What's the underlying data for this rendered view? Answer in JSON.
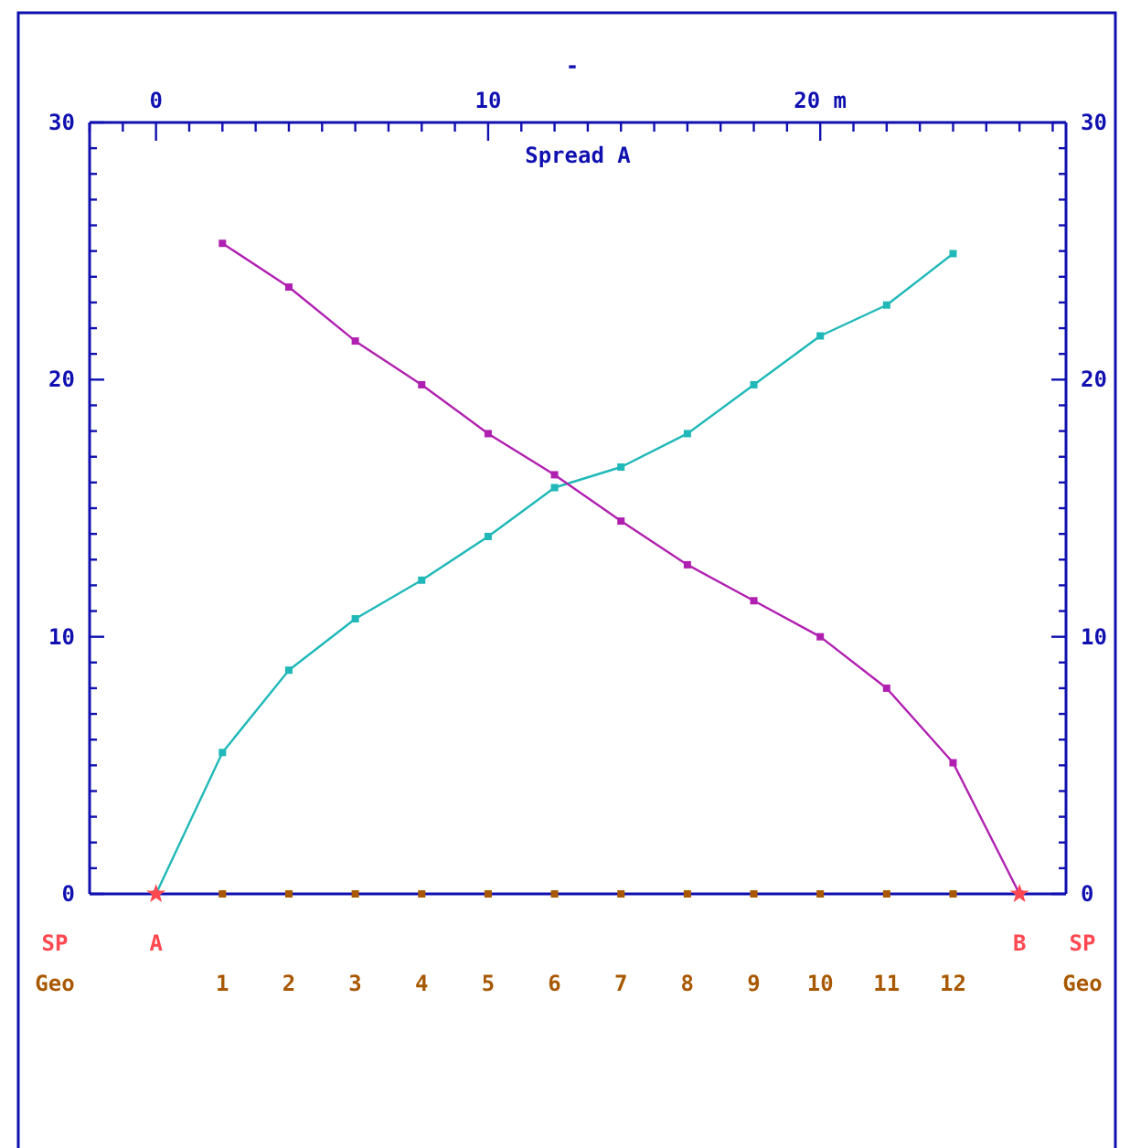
{
  "chart_data": {
    "type": "line",
    "title": "-",
    "xlabel": "Spread A",
    "xlim": [
      -2,
      27.4
    ],
    "xticks": [
      {
        "value": -2,
        "label": null
      },
      {
        "value": -1,
        "label": null
      },
      0,
      {
        "value": 1,
        "label": null
      },
      {
        "value": 2,
        "label": null
      },
      {
        "value": 3,
        "label": null
      },
      {
        "value": 4,
        "label": null
      },
      {
        "value": 5,
        "label": null
      },
      {
        "value": 6,
        "label": null
      },
      {
        "value": 7,
        "label": null
      },
      {
        "value": 8,
        "label": null
      },
      {
        "value": 9,
        "label": null
      },
      10,
      {
        "value": 11,
        "label": null
      },
      {
        "value": 12,
        "label": null
      },
      {
        "value": 13,
        "label": null
      },
      {
        "value": 14,
        "label": null
      },
      {
        "value": 15,
        "label": null
      },
      {
        "value": 16,
        "label": null
      },
      {
        "value": 17,
        "label": null
      },
      {
        "value": 18,
        "label": null
      },
      {
        "value": 19,
        "label": null
      },
      {
        "value": 20,
        "label": "20 m"
      },
      {
        "value": 21,
        "label": null
      },
      {
        "value": 22,
        "label": null
      },
      {
        "value": 23,
        "label": null
      },
      {
        "value": 24,
        "label": null
      },
      {
        "value": 25,
        "label": null
      },
      {
        "value": 26,
        "label": null
      },
      {
        "value": 27,
        "label": null
      }
    ],
    "ylim": [
      0,
      30
    ],
    "yticks": [
      0,
      {
        "value": 1,
        "label": null
      },
      {
        "value": 2,
        "label": null
      },
      {
        "value": 3,
        "label": null
      },
      {
        "value": 4,
        "label": null
      },
      {
        "value": 5,
        "label": null
      },
      {
        "value": 6,
        "label": null
      },
      {
        "value": 7,
        "label": null
      },
      {
        "value": 8,
        "label": null
      },
      {
        "value": 9,
        "label": null
      },
      10,
      {
        "value": 11,
        "label": null
      },
      {
        "value": 12,
        "label": null
      },
      {
        "value": 13,
        "label": null
      },
      {
        "value": 14,
        "label": null
      },
      {
        "value": 15,
        "label": null
      },
      {
        "value": 16,
        "label": null
      },
      {
        "value": 17,
        "label": null
      },
      {
        "value": 18,
        "label": null
      },
      {
        "value": 19,
        "label": null
      },
      20,
      {
        "value": 21,
        "label": null
      },
      {
        "value": 22,
        "label": null
      },
      {
        "value": 23,
        "label": null
      },
      {
        "value": 24,
        "label": null
      },
      {
        "value": 25,
        "label": null
      },
      {
        "value": 26,
        "label": null
      },
      {
        "value": 27,
        "label": null
      },
      {
        "value": 28,
        "label": null
      },
      {
        "value": 29,
        "label": null
      },
      30
    ],
    "y2lim": [
      0,
      30
    ],
    "y2ticks": [
      0,
      {
        "value": 1,
        "label": null
      },
      {
        "value": 2,
        "label": null
      },
      {
        "value": 3,
        "label": null
      },
      {
        "value": 4,
        "label": null
      },
      {
        "value": 5,
        "label": null
      },
      {
        "value": 6,
        "label": null
      },
      {
        "value": 7,
        "label": null
      },
      {
        "value": 8,
        "label": null
      },
      {
        "value": 9,
        "label": null
      },
      10,
      {
        "value": 11,
        "label": null
      },
      {
        "value": 12,
        "label": null
      },
      {
        "value": 13,
        "label": null
      },
      {
        "value": 14,
        "label": null
      },
      {
        "value": 15,
        "label": null
      },
      {
        "value": 16,
        "label": null
      },
      {
        "value": 17,
        "label": null
      },
      {
        "value": 18,
        "label": null
      },
      {
        "value": 19,
        "label": null
      },
      20,
      {
        "value": 21,
        "label": null
      },
      {
        "value": 22,
        "label": null
      },
      {
        "value": 23,
        "label": null
      },
      {
        "value": 24,
        "label": null
      },
      {
        "value": 25,
        "label": null
      },
      {
        "value": 26,
        "label": null
      },
      {
        "value": 27,
        "label": null
      },
      {
        "value": 28,
        "label": null
      },
      {
        "value": 29,
        "label": null
      },
      30
    ],
    "grid": false,
    "marker": "square",
    "line_style": "solid",
    "series": [
      {
        "color": "#20b8b8",
        "x": [
          0,
          2,
          4,
          6,
          8,
          10,
          12,
          14,
          16,
          18,
          20,
          22,
          24
        ],
        "values": [
          0,
          5.5,
          8.7,
          10.7,
          12.2,
          13.9,
          15.8,
          16.6,
          17.9,
          19.8,
          21.7,
          22.9,
          24.9
        ]
      },
      {
        "color": "#b020b0",
        "x": [
          2,
          4,
          6,
          8,
          10,
          12,
          14,
          16,
          18,
          20,
          22,
          24,
          26
        ],
        "values": [
          25.3,
          23.6,
          21.5,
          19.8,
          17.9,
          16.3,
          14.5,
          12.8,
          11.4,
          10.0,
          8.0,
          5.1,
          0
        ]
      },
      {
        "type": "scatter",
        "marker": "star",
        "color": "#ff4850",
        "x": [
          0,
          26
        ],
        "values": [
          0,
          0
        ]
      },
      {
        "type": "scatter",
        "marker": "square",
        "color": "#a85800",
        "x": [
          2,
          4,
          6,
          8,
          10,
          12,
          14,
          16,
          18,
          20,
          22,
          24
        ],
        "values": [
          0,
          0,
          0,
          0,
          0,
          0,
          0,
          0,
          0,
          0,
          0,
          0
        ]
      }
    ],
    "annotations": [
      "SP",
      "SP",
      "Geo",
      "Geo",
      "A",
      "B",
      "1 2 3 4 5 6 7 8 9 10 11 12"
    ]
  }
}
